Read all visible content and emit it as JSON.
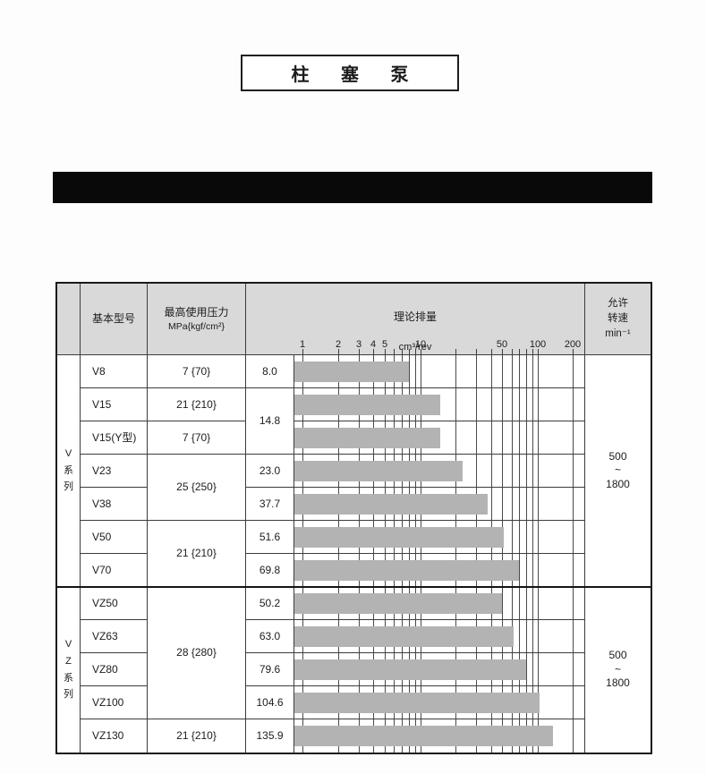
{
  "page_title": "柱  塞  泵",
  "colors": {
    "header_bg": "#d9d9d9",
    "bar_fill": "#b3b3b3",
    "grid_line": "#4a4a4a",
    "table_border": "#1a1a1a",
    "black_bar": "#090909"
  },
  "table": {
    "header": {
      "series": "",
      "model": "基本型号",
      "pressure": [
        "最高使用压力",
        "MPa{kgf/cm²}"
      ],
      "displacement": [
        "理论排量",
        "cm³/rev"
      ],
      "speed": [
        "允许",
        "转速",
        "min⁻¹"
      ]
    },
    "series_groups": [
      {
        "label": "V\n系\n列",
        "speed_range": "500\n~\n1800"
      },
      {
        "label": "V\nZ\n系\n列",
        "speed_range": "500\n~\n1800"
      }
    ],
    "cells": {
      "models": [
        "V8",
        "V15",
        "V15(Y型)",
        "V23",
        "V38",
        "V50",
        "V70",
        "VZ50",
        "VZ63",
        "VZ80",
        "VZ100",
        "VZ130"
      ],
      "pressures": {
        "v8": "7 {70}",
        "v15": "21 {210}",
        "v15y": "7 {70}",
        "v23_v38": "25 {250}",
        "v50_v70": "21 {210}",
        "vz50_vz100": "28 {280}",
        "vz130": "21 {210}"
      },
      "displacements": {
        "v8": "8.0",
        "v15_v15y": "14.8",
        "v23": "23.0",
        "v38": "37.7",
        "v50": "51.6",
        "v70": "69.8",
        "vz50": "50.2",
        "vz63": "63.0",
        "vz80": "79.6",
        "vz100": "104.6",
        "vz130": "135.9"
      }
    }
  },
  "chart_data": {
    "type": "bar",
    "orientation": "horizontal",
    "x_scale": "log",
    "x_min": 0.85,
    "x_max": 250,
    "title": "理论排量",
    "unit": "cm³/rev",
    "x_axis_tick_labels": [
      "1",
      "2",
      "3",
      "4",
      "5",
      "10",
      "50",
      "100",
      "200"
    ],
    "gridline_values": [
      1,
      2,
      3,
      4,
      5,
      6,
      7,
      8,
      9,
      10,
      20,
      30,
      40,
      50,
      60,
      70,
      80,
      90,
      100,
      200
    ],
    "bar_color": "#b3b3b3",
    "rows": [
      {
        "model": "V8",
        "displacement": 8.0
      },
      {
        "model": "V15",
        "displacement": 14.8
      },
      {
        "model": "V15(Y型)",
        "displacement": 14.8
      },
      {
        "model": "V23",
        "displacement": 23.0
      },
      {
        "model": "V38",
        "displacement": 37.7
      },
      {
        "model": "V50",
        "displacement": 51.6
      },
      {
        "model": "V70",
        "displacement": 69.8
      },
      {
        "model": "VZ50",
        "displacement": 50.2
      },
      {
        "model": "VZ63",
        "displacement": 63.0
      },
      {
        "model": "VZ80",
        "displacement": 79.6
      },
      {
        "model": "VZ100",
        "displacement": 104.6
      },
      {
        "model": "VZ130",
        "displacement": 135.9
      }
    ]
  }
}
